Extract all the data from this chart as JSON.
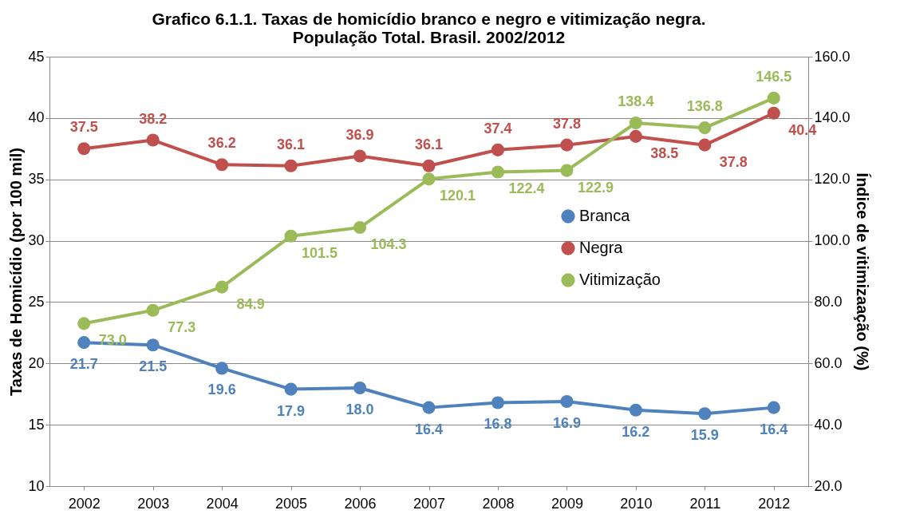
{
  "chart_data": {
    "type": "line",
    "title": "Grafico 6.1.1. Taxas de homicídio branco e negro e vitimização negra. População Total. Brasil. 2002/2012",
    "ylabel": "Taxas de Homicídio (por 100 mil)",
    "y2label": "Índice de vitimizaação (%)",
    "categories": [
      "2002",
      "2003",
      "2004",
      "2005",
      "2006",
      "2007",
      "2008",
      "2009",
      "2010",
      "2011",
      "2012"
    ],
    "series": [
      {
        "name": "Branca",
        "color": "#4f81bd",
        "values": [
          21.7,
          21.5,
          19.6,
          17.9,
          18.0,
          16.4,
          16.8,
          16.9,
          16.2,
          15.9,
          16.4
        ],
        "value_labels": [
          "21.7",
          "21.5",
          "19.6",
          "17.9",
          "18.0",
          "16.4",
          "16.8",
          "16.9",
          "16.2",
          "15.9",
          "16.4"
        ]
      },
      {
        "name": "Negra",
        "color": "#c0504d",
        "values": [
          37.5,
          38.2,
          36.2,
          36.1,
          36.9,
          36.1,
          37.4,
          37.8,
          38.5,
          37.8,
          40.4
        ],
        "value_labels": [
          "37.5",
          "38.2",
          "36.2",
          "36.1",
          "36.9",
          "36.1",
          "37.4",
          "37.8",
          "38.5",
          "37.8",
          "40.4"
        ]
      },
      {
        "name": "Vitimização",
        "color": "#9bbb59",
        "axis": "y2",
        "values": [
          73.0,
          77.3,
          84.9,
          101.5,
          104.3,
          120.1,
          122.4,
          122.9,
          138.4,
          136.8,
          146.5
        ],
        "value_labels": [
          "73.0",
          "77.3",
          "84.9",
          "101.5",
          "104.3",
          "120.1",
          "122.4",
          "122.9",
          "138.4",
          "136.8",
          "146.5"
        ]
      }
    ],
    "ylim": [
      10,
      45
    ],
    "yticks": [
      10,
      15,
      20,
      25,
      30,
      35,
      40,
      45
    ],
    "y2lim": [
      20,
      160
    ],
    "y2ticks": [
      {
        "value": 20,
        "label": "20.0"
      },
      {
        "value": 40,
        "label": "40.0"
      },
      {
        "value": 60,
        "label": "60.0"
      },
      {
        "value": 80,
        "label": "80.0"
      },
      {
        "value": 100,
        "label": "100.0"
      },
      {
        "value": 120,
        "label": "120.0"
      },
      {
        "value": 140,
        "label": "140.0"
      },
      {
        "value": 160,
        "label": "160.0"
      }
    ],
    "grid": "y",
    "legend": "right",
    "marker": "circle",
    "line_style": "solid"
  }
}
